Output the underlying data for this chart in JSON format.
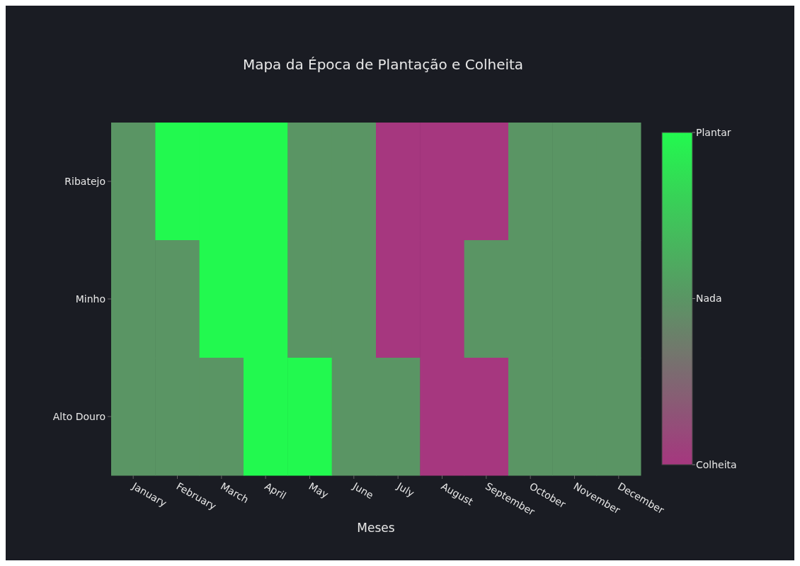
{
  "chart_data": {
    "type": "heatmap",
    "title": "Mapa da Época de Plantação e Colheita",
    "xlabel": "Meses",
    "categories": [
      "January",
      "February",
      "March",
      "April",
      "May",
      "June",
      "July",
      "August",
      "September",
      "October",
      "November",
      "December"
    ],
    "y_categories": [
      "Ribatejo",
      "Minho",
      "Alto Douro"
    ],
    "cells": [
      [
        0,
        1,
        1,
        1,
        0,
        0,
        -1,
        -1,
        -1,
        0,
        0,
        0
      ],
      [
        0,
        0,
        1,
        1,
        0,
        0,
        -1,
        -1,
        0,
        0,
        0,
        0
      ],
      [
        0,
        0,
        0,
        1,
        1,
        0,
        0,
        -1,
        -1,
        0,
        0,
        0
      ]
    ],
    "clim": [
      -1,
      1
    ],
    "cticks": [
      {
        "value": -1,
        "label": "Colheita"
      },
      {
        "value": 0,
        "label": "Nada"
      },
      {
        "value": 1,
        "label": "Plantar"
      }
    ],
    "colors": [
      "#a6377f",
      "#5a9564",
      "#22f94f"
    ]
  }
}
